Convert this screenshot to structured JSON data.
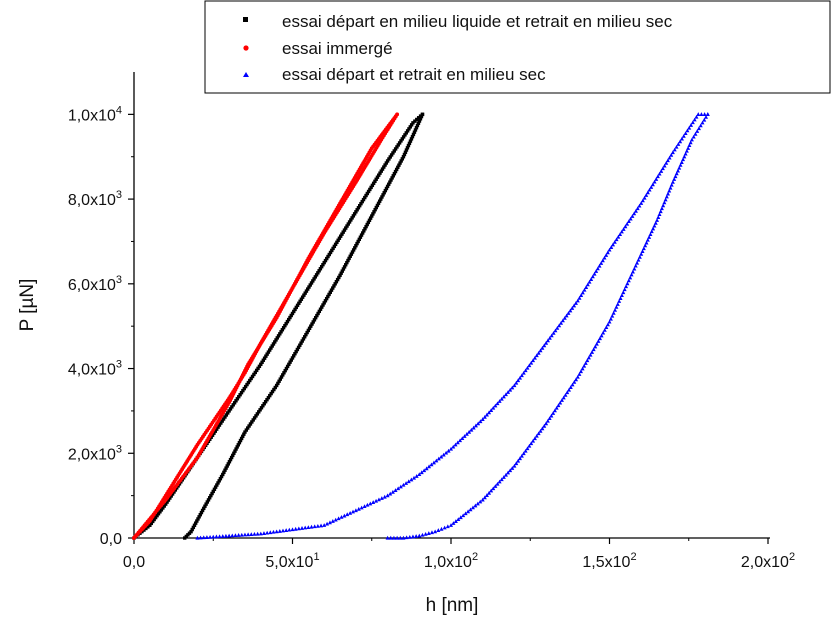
{
  "chart_data": {
    "type": "scatter",
    "xlabel": "h [nm]",
    "ylabel": "P [µN]",
    "xlim": [
      0,
      200
    ],
    "ylim": [
      0,
      11000
    ],
    "x_ticks": [
      {
        "value": 0,
        "label": "0,0"
      },
      {
        "value": 50,
        "label": "5,0x10",
        "exp": "1"
      },
      {
        "value": 100,
        "label": "1,0x10",
        "exp": "2"
      },
      {
        "value": 150,
        "label": "1,5x10",
        "exp": "2"
      },
      {
        "value": 200,
        "label": "2,0x10",
        "exp": "2"
      }
    ],
    "y_ticks": [
      {
        "value": 0,
        "label": "0,0"
      },
      {
        "value": 2000,
        "label": "2,0x10",
        "exp": "3"
      },
      {
        "value": 4000,
        "label": "4,0x10",
        "exp": "3"
      },
      {
        "value": 6000,
        "label": "6,0x10",
        "exp": "3"
      },
      {
        "value": 8000,
        "label": "8,0x10",
        "exp": "3"
      },
      {
        "value": 10000,
        "label": "1,0x10",
        "exp": "4"
      }
    ],
    "legend_position": "top-right",
    "grid": false,
    "series": [
      {
        "name": "essai départ en milieu liquide et retrait en milieu sec",
        "color": "#000000",
        "marker": "square",
        "loading": {
          "x": [
            0,
            5,
            10,
            20,
            30,
            40,
            50,
            60,
            70,
            80,
            88,
            91
          ],
          "y": [
            0,
            300,
            800,
            1900,
            3000,
            4100,
            5300,
            6500,
            7700,
            8900,
            9800,
            10000
          ]
        },
        "unloading": {
          "x": [
            91,
            85,
            75,
            65,
            55,
            45,
            35,
            28,
            22,
            18,
            16
          ],
          "y": [
            10000,
            9000,
            7600,
            6200,
            4900,
            3600,
            2500,
            1500,
            700,
            150,
            0
          ]
        }
      },
      {
        "name": "essai immergé",
        "color": "#ff0000",
        "marker": "circle",
        "loading": {
          "x": [
            0,
            5,
            10,
            20,
            30,
            35,
            40,
            50,
            60,
            70,
            78,
            83
          ],
          "y": [
            0,
            400,
            1000,
            2200,
            3300,
            3900,
            4600,
            5900,
            7200,
            8400,
            9400,
            10000
          ]
        },
        "unloading": {
          "x": [
            83,
            75,
            65,
            55,
            45,
            36,
            30,
            20,
            10,
            0
          ],
          "y": [
            10000,
            9200,
            7900,
            6600,
            5200,
            4100,
            3200,
            1900,
            900,
            0
          ]
        }
      },
      {
        "name": "essai départ et retrait en milieu sec",
        "color": "#0000ff",
        "marker": "triangle",
        "loading": {
          "x": [
            20,
            40,
            60,
            80,
            90,
            100,
            110,
            120,
            130,
            140,
            150,
            160,
            170,
            178,
            181
          ],
          "y": [
            0,
            100,
            300,
            1000,
            1500,
            2100,
            2800,
            3600,
            4600,
            5600,
            6800,
            7900,
            9100,
            10000,
            10000
          ]
        },
        "unloading": {
          "x": [
            181,
            176,
            170,
            165,
            160,
            150,
            140,
            130,
            120,
            110,
            100,
            95,
            90,
            85,
            80
          ],
          "y": [
            10000,
            9400,
            8400,
            7500,
            6700,
            5100,
            3800,
            2700,
            1700,
            900,
            300,
            150,
            50,
            0,
            0
          ]
        }
      }
    ]
  }
}
